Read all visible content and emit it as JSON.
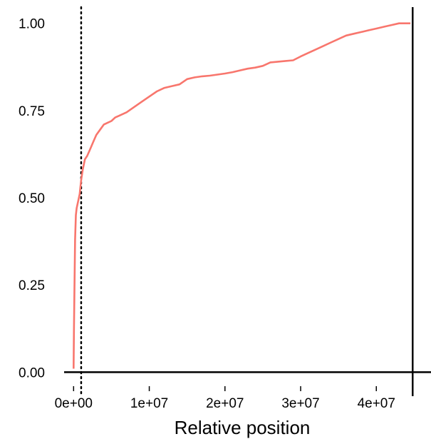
{
  "chart_data": {
    "type": "line",
    "title": "",
    "xlabel": "Relative position",
    "ylabel": "",
    "xlim": [
      -500000,
      46000000
    ],
    "ylim": [
      -0.03,
      1.03
    ],
    "grid": false,
    "legend": "none",
    "x_ticks": [
      0,
      10000000,
      20000000,
      30000000,
      40000000
    ],
    "x_tick_labels": [
      "0e+00",
      "1e+07",
      "2e+07",
      "3e+07",
      "4e+07"
    ],
    "y_ticks": [
      0,
      0.25,
      0.5,
      0.75,
      1.0
    ],
    "y_tick_labels": [
      "0.00",
      "0.25",
      "0.50",
      "0.75",
      "1.00"
    ],
    "series": [
      {
        "color": "#F8766D",
        "x": [
          0,
          50000,
          100000,
          150000,
          200000,
          300000,
          400000,
          600000,
          800000,
          1000000,
          1200000,
          1500000,
          1800000,
          2200000,
          2600000,
          3000000,
          3500000,
          4000000,
          4500000,
          5000000,
          5500000,
          6000000,
          7000000,
          8000000,
          9000000,
          10000000,
          11000000,
          12000000,
          13000000,
          14000000,
          15000000,
          16000000,
          17000000,
          18000000,
          19000000,
          20000000,
          21000000,
          22000000,
          23000000,
          24000000,
          25000000,
          26000000,
          27000000,
          28000000,
          29000000,
          30000000,
          31000000,
          32000000,
          33000000,
          34000000,
          35000000,
          36000000,
          37000000,
          38000000,
          39000000,
          40000000,
          41000000,
          42000000,
          43000000,
          44000000,
          44500000
        ],
        "y": [
          0.01,
          0.12,
          0.22,
          0.3,
          0.38,
          0.45,
          0.47,
          0.49,
          0.51,
          0.55,
          0.58,
          0.61,
          0.62,
          0.64,
          0.66,
          0.68,
          0.695,
          0.71,
          0.715,
          0.72,
          0.73,
          0.735,
          0.745,
          0.76,
          0.775,
          0.79,
          0.805,
          0.815,
          0.82,
          0.825,
          0.84,
          0.845,
          0.848,
          0.85,
          0.853,
          0.856,
          0.86,
          0.865,
          0.87,
          0.873,
          0.878,
          0.888,
          0.89,
          0.892,
          0.894,
          0.905,
          0.915,
          0.925,
          0.935,
          0.945,
          0.955,
          0.965,
          0.97,
          0.975,
          0.98,
          0.985,
          0.99,
          0.995,
          1.0,
          1.0,
          1.0
        ]
      }
    ],
    "reference_lines": [
      {
        "orientation": "vertical",
        "x": 1000000,
        "style": "dotted",
        "color": "#000000"
      },
      {
        "orientation": "vertical",
        "x": 44800000,
        "style": "solid",
        "color": "#000000"
      },
      {
        "orientation": "horizontal",
        "y": 0,
        "style": "solid",
        "color": "#000000"
      }
    ]
  }
}
